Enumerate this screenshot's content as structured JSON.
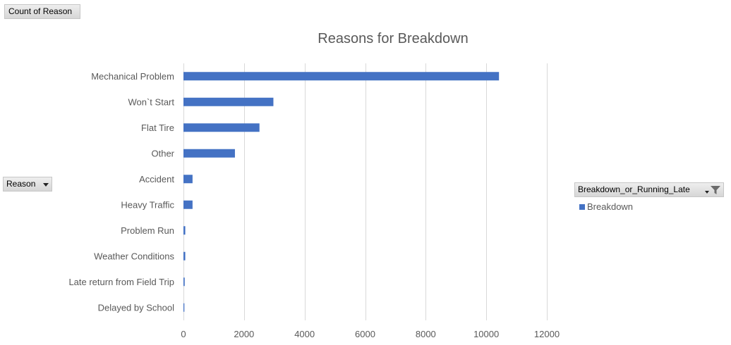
{
  "pivot": {
    "values_field": "Count of Reason",
    "axis_field": "Reason",
    "legend_field": "Breakdown_or_Running_Late"
  },
  "colors": {
    "series": "#4472c4",
    "gridline": "#d9d9d9",
    "text": "#595959"
  },
  "icons": {
    "axis_dropdown": "chevron-down-icon",
    "legend_dropdown": "chevron-down-icon",
    "legend_filter": "filter-icon"
  },
  "chart_data": {
    "type": "bar",
    "orientation": "horizontal",
    "title": "Reasons for Breakdown",
    "xlabel": "",
    "ylabel": "",
    "categories": [
      "Mechanical Problem",
      "Won`t Start",
      "Flat Tire",
      "Other",
      "Accident",
      "Heavy Traffic",
      "Problem Run",
      "Weather Conditions",
      "Late return from Field Trip",
      "Delayed by School"
    ],
    "series": [
      {
        "name": "Breakdown",
        "values": [
          10420,
          2970,
          2510,
          1700,
          300,
          300,
          60,
          60,
          40,
          30
        ]
      }
    ],
    "xlim": [
      0,
      12000
    ],
    "xticks": [
      0,
      2000,
      4000,
      6000,
      8000,
      10000,
      12000
    ],
    "grid": true,
    "legend": "right"
  }
}
